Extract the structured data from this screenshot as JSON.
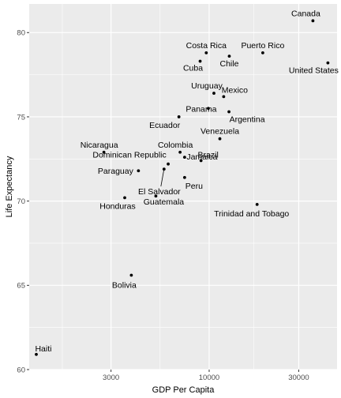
{
  "chart_data": {
    "type": "scatter",
    "xlabel": "GDP Per Capita",
    "ylabel": "Life Expectancy",
    "x_scale": "log10",
    "xlim": [
      1100,
      48000
    ],
    "ylim": [
      60,
      81.7
    ],
    "x_ticks": [
      3000,
      10000,
      30000
    ],
    "x_tick_labels": [
      "3000",
      "10000",
      "30000"
    ],
    "y_ticks": [
      60,
      65,
      70,
      75,
      80
    ],
    "y_tick_labels": [
      "60",
      "65",
      "70",
      "75",
      "80"
    ],
    "grid": true,
    "legend": "none",
    "colors": {
      "panel": "#ebebeb",
      "grid": "#ffffff",
      "point": "#000000",
      "label": "#000000",
      "tick": "#4d4d4d"
    },
    "points": [
      {
        "label": "Canada",
        "x": 35700,
        "y": 80.7
      },
      {
        "label": "Costa Rica",
        "x": 9650,
        "y": 78.8
      },
      {
        "label": "Puerto Rico",
        "x": 19300,
        "y": 78.8
      },
      {
        "label": "Cuba",
        "x": 8950,
        "y": 78.3
      },
      {
        "label": "Chile",
        "x": 12800,
        "y": 78.6
      },
      {
        "label": "United States",
        "x": 42900,
        "y": 78.2
      },
      {
        "label": "Uruguay",
        "x": 10600,
        "y": 76.4
      },
      {
        "label": "Mexico",
        "x": 11950,
        "y": 76.2
      },
      {
        "label": "Panama",
        "x": 9900,
        "y": 75.5
      },
      {
        "label": "Argentina",
        "x": 12750,
        "y": 75.3
      },
      {
        "label": "Ecuador",
        "x": 6900,
        "y": 75.0
      },
      {
        "label": "Venezuela",
        "x": 11400,
        "y": 73.7
      },
      {
        "label": "Nicaragua",
        "x": 2750,
        "y": 72.9
      },
      {
        "label": "Colombia",
        "x": 7000,
        "y": 72.9
      },
      {
        "label": "Dominican Republic",
        "x": 6050,
        "y": 72.2
      },
      {
        "label": "Brazil",
        "x": 9050,
        "y": 72.4
      },
      {
        "label": "Paraguay",
        "x": 4200,
        "y": 71.8
      },
      {
        "label": "El Salvador",
        "x": 5750,
        "y": 71.9
      },
      {
        "label": "Jamaica",
        "x": 7400,
        "y": 72.6
      },
      {
        "label": "Peru",
        "x": 7400,
        "y": 71.4
      },
      {
        "label": "Honduras",
        "x": 3550,
        "y": 70.2
      },
      {
        "label": "Guatemala",
        "x": 5200,
        "y": 70.3
      },
      {
        "label": "Trinidad and Tobago",
        "x": 18000,
        "y": 69.8
      },
      {
        "label": "Bolivia",
        "x": 3850,
        "y": 65.6
      },
      {
        "label": "Haiti",
        "x": 1200,
        "y": 60.9
      }
    ]
  }
}
